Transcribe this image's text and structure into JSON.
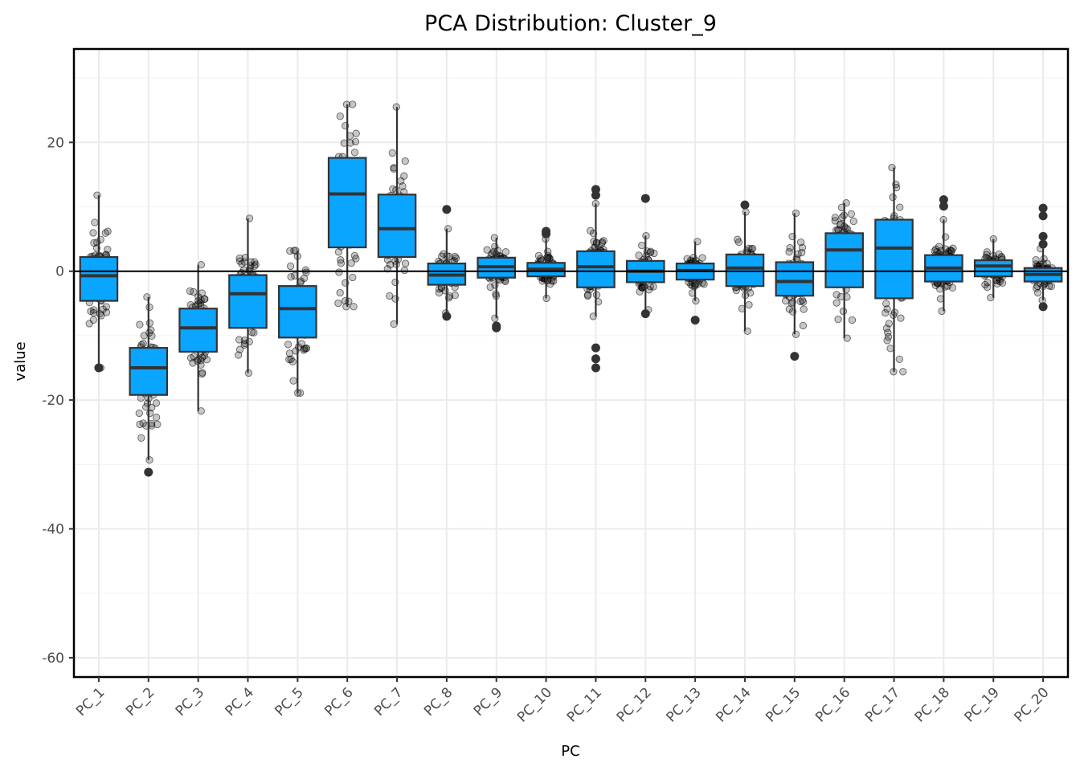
{
  "chart_data": {
    "type": "boxplot",
    "title": "PCA Distribution: Cluster_9",
    "xlabel": "PC",
    "ylabel": "value",
    "ylim": [
      -63,
      34.5
    ],
    "y_ticks": [
      20,
      0,
      -20,
      -40,
      -60
    ],
    "y_tick_labels": [
      "20",
      "0",
      "-20",
      "-40",
      "-60"
    ],
    "reference_line_y": 0,
    "grid": true,
    "box_color": "#0aa5ff",
    "categories": [
      "PC_1",
      "PC_2",
      "PC_3",
      "PC_4",
      "PC_5",
      "PC_6",
      "PC_7",
      "PC_8",
      "PC_9",
      "PC_10",
      "PC_11",
      "PC_12",
      "PC_13",
      "PC_14",
      "PC_15",
      "PC_16",
      "PC_17",
      "PC_18",
      "PC_19",
      "PC_20"
    ],
    "boxes": [
      {
        "min": -15.0,
        "q1": -4.6,
        "median": -0.7,
        "q3": 2.2,
        "max": 11.8,
        "outliers": [
          -15.0
        ]
      },
      {
        "min": -29.3,
        "q1": -19.2,
        "median": -15.0,
        "q3": -11.9,
        "max": -4.0,
        "outliers": [
          -31.2
        ]
      },
      {
        "min": -21.7,
        "q1": -12.5,
        "median": -8.8,
        "q3": -5.8,
        "max": 1.0,
        "outliers": []
      },
      {
        "min": -15.8,
        "q1": -8.8,
        "median": -3.5,
        "q3": -0.6,
        "max": 8.2,
        "outliers": []
      },
      {
        "min": -18.9,
        "q1": -10.3,
        "median": -5.8,
        "q3": -2.3,
        "max": 3.2,
        "outliers": []
      },
      {
        "min": -5.5,
        "q1": 3.7,
        "median": 12.0,
        "q3": 17.6,
        "max": 25.9,
        "outliers": []
      },
      {
        "min": -8.2,
        "q1": 2.2,
        "median": 6.6,
        "q3": 11.9,
        "max": 25.5,
        "outliers": []
      },
      {
        "min": -6.5,
        "q1": -2.1,
        "median": -0.6,
        "q3": 1.2,
        "max": 6.6,
        "outliers": [
          9.6,
          -7.0
        ]
      },
      {
        "min": -7.3,
        "q1": -1.0,
        "median": 0.7,
        "q3": 2.1,
        "max": 5.2,
        "outliers": [
          -8.8,
          -8.5
        ]
      },
      {
        "min": -4.2,
        "q1": -0.8,
        "median": 0.3,
        "q3": 1.3,
        "max": 5.0,
        "outliers": [
          6.2,
          5.8
        ]
      },
      {
        "min": -7.0,
        "q1": -2.5,
        "median": 0.7,
        "q3": 3.1,
        "max": 10.5,
        "outliers": [
          12.7,
          11.8,
          -11.9,
          -13.6,
          -15.0
        ]
      },
      {
        "min": -6.0,
        "q1": -1.7,
        "median": 0.0,
        "q3": 1.6,
        "max": 5.5,
        "outliers": [
          11.3,
          -6.6
        ]
      },
      {
        "min": -4.6,
        "q1": -1.3,
        "median": 0.1,
        "q3": 1.2,
        "max": 4.6,
        "outliers": [
          -7.6
        ]
      },
      {
        "min": -9.3,
        "q1": -2.3,
        "median": 0.5,
        "q3": 2.6,
        "max": 9.2,
        "outliers": [
          10.3
        ]
      },
      {
        "min": -9.8,
        "q1": -3.8,
        "median": -1.6,
        "q3": 1.4,
        "max": 9.0,
        "outliers": [
          -13.2
        ]
      },
      {
        "min": -10.4,
        "q1": -2.5,
        "median": 3.3,
        "q3": 5.9,
        "max": 10.6,
        "outliers": []
      },
      {
        "min": -15.6,
        "q1": -4.2,
        "median": 3.6,
        "q3": 8.0,
        "max": 16.1,
        "outliers": []
      },
      {
        "min": -6.2,
        "q1": -1.6,
        "median": 0.5,
        "q3": 2.5,
        "max": 8.0,
        "outliers": [
          11.1,
          10.1
        ]
      },
      {
        "min": -4.1,
        "q1": -0.8,
        "median": 0.8,
        "q3": 1.7,
        "max": 5.0,
        "outliers": []
      },
      {
        "min": -4.5,
        "q1": -1.6,
        "median": -0.5,
        "q3": 0.5,
        "max": 3.5,
        "outliers": [
          9.8,
          8.6,
          5.4,
          4.2,
          -5.5
        ]
      }
    ]
  }
}
